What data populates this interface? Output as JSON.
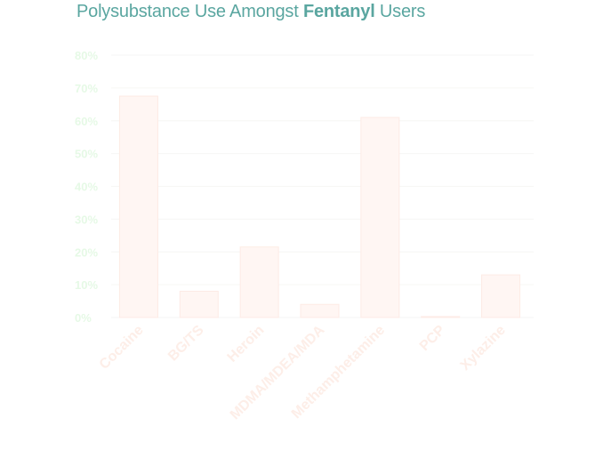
{
  "title": {
    "prefix": "Polysubstance Use Amongst ",
    "emphasis": "Fentanyl",
    "suffix": " Users",
    "color": "#5aa6a0"
  },
  "colors": {
    "bar_fill": "#fff6f3",
    "bar_stroke": "#fdebe5",
    "x_tick": "#fdeee8",
    "y_tick": "#e6f9e6"
  },
  "chart_data": {
    "type": "bar",
    "title": "Polysubstance Use Amongst Fentanyl Users",
    "categories": [
      "Cocaine",
      "BG/TS",
      "Heroin",
      "MDMA/MDEA/MDA",
      "Methamphetamine",
      "PCP",
      "Xylazine"
    ],
    "values": [
      67.5,
      8,
      21.5,
      4,
      61,
      0.3,
      13
    ],
    "y_ticks": [
      "0%",
      "10%",
      "20%",
      "30%",
      "40%",
      "50%",
      "60%",
      "70%",
      "80%"
    ],
    "ylim": [
      0,
      80
    ],
    "xlabel": "",
    "ylabel": "",
    "grid": true,
    "legend": "none"
  }
}
